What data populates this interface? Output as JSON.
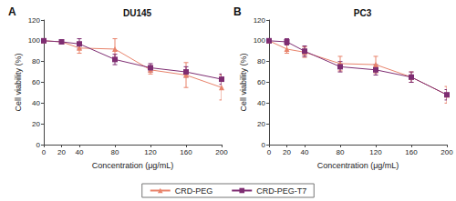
{
  "chart_data": [
    {
      "type": "line",
      "label": "A",
      "title": "DU145",
      "x_label": "Concentration (μg/mL)",
      "y_label": "Cell viability (%)",
      "xlim": [
        0,
        200
      ],
      "xticks": [
        0,
        20,
        40,
        80,
        120,
        160,
        200
      ],
      "ylim": [
        0,
        120
      ],
      "yticks": [
        0,
        20,
        40,
        60,
        80,
        100,
        120
      ],
      "grid": false,
      "legend": "bottom",
      "series": [
        {
          "name": "CRD-PEG",
          "color": "#e8836b",
          "marker": "triangle",
          "x": [
            0,
            20,
            40,
            80,
            120,
            160,
            200
          ],
          "values": [
            100,
            99,
            93,
            92,
            72,
            67,
            55
          ],
          "errors": [
            1,
            2,
            5,
            10,
            4,
            12,
            12
          ]
        },
        {
          "name": "CRD-PEG-T7",
          "color": "#7e2d72",
          "marker": "square",
          "x": [
            0,
            20,
            40,
            80,
            120,
            160,
            200
          ],
          "values": [
            100,
            99,
            97,
            82,
            74,
            70,
            63
          ],
          "errors": [
            1,
            2,
            5,
            5,
            4,
            5,
            5
          ]
        }
      ]
    },
    {
      "type": "line",
      "label": "B",
      "title": "PC3",
      "x_label": "Concentration (μg/mL)",
      "y_label": "Cell viability (%)",
      "xlim": [
        0,
        200
      ],
      "xticks": [
        0,
        20,
        40,
        80,
        120,
        160,
        200
      ],
      "ylim": [
        0,
        120
      ],
      "yticks": [
        0,
        20,
        40,
        60,
        80,
        100,
        120
      ],
      "grid": false,
      "legend": "bottom",
      "series": [
        {
          "name": "CRD-PEG",
          "color": "#e8836b",
          "marker": "triangle",
          "x": [
            0,
            20,
            40,
            80,
            120,
            160,
            200
          ],
          "values": [
            100,
            92,
            89,
            78,
            77,
            65,
            48
          ],
          "errors": [
            2,
            4,
            5,
            7,
            8,
            5,
            8
          ]
        },
        {
          "name": "CRD-PEG-T7",
          "color": "#7e2d72",
          "marker": "square",
          "x": [
            0,
            20,
            40,
            80,
            120,
            160,
            200
          ],
          "values": [
            100,
            99,
            90,
            75,
            72,
            65,
            48
          ],
          "errors": [
            2,
            3,
            5,
            5,
            5,
            5,
            5
          ]
        }
      ]
    }
  ]
}
